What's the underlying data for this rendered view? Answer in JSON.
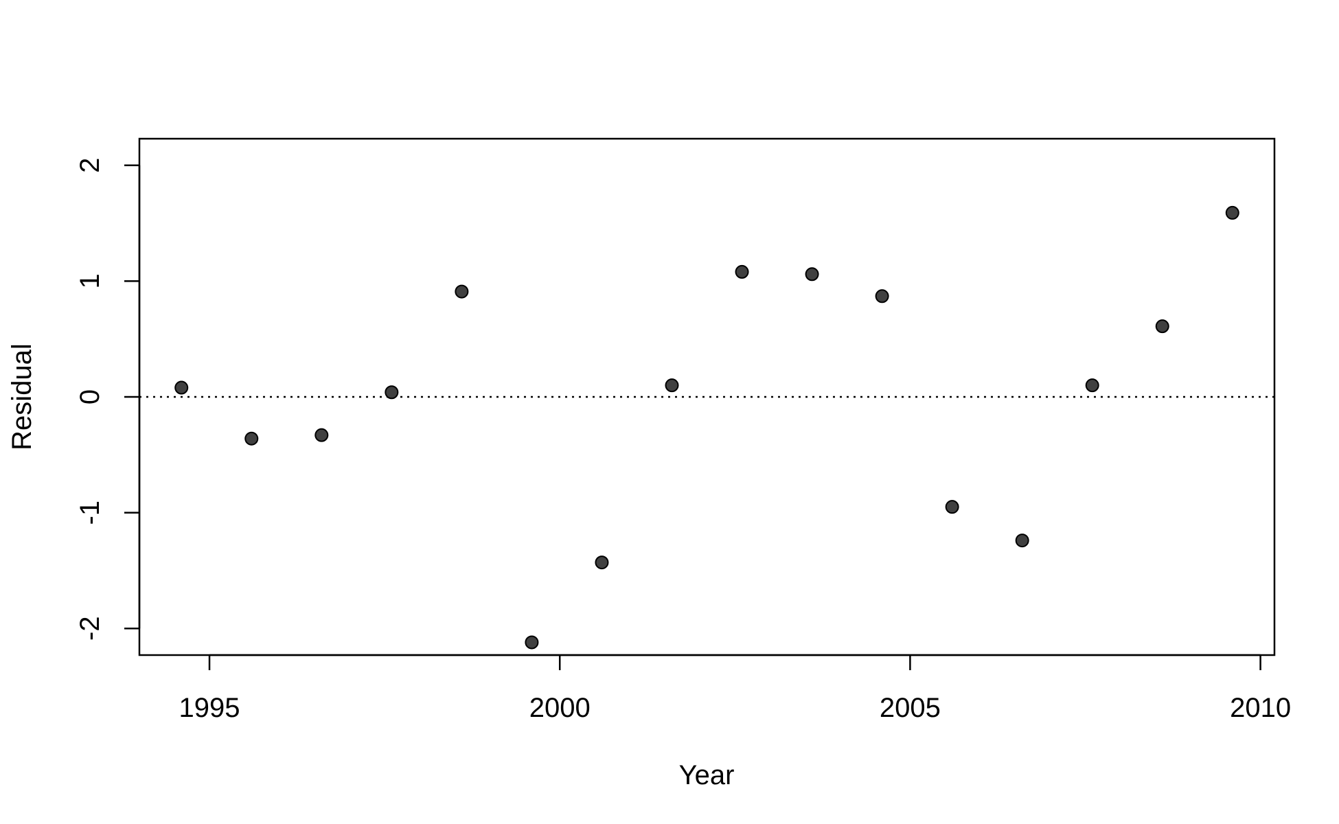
{
  "chart_data": {
    "type": "scatter",
    "title": "",
    "xlabel": "Year",
    "ylabel": "Residual",
    "xlim": [
      1994,
      2010.2
    ],
    "ylim": [
      -2.23,
      2.23
    ],
    "x_ticks": [
      1995,
      2000,
      2005,
      2010
    ],
    "x_tick_labels": [
      "1995",
      "2000",
      "2005",
      "2010"
    ],
    "y_ticks": [
      -2,
      -1,
      0,
      1,
      2
    ],
    "y_tick_labels": [
      "-2",
      "-1",
      "0",
      "1",
      "2"
    ],
    "reference_line": {
      "y": 0,
      "style": "dotted"
    },
    "grid": false,
    "marker_color": "#404040",
    "series": [
      {
        "x": [
          1994.6,
          1995.6,
          1996.6,
          1997.6,
          1998.6,
          1999.6,
          2000.6,
          2001.6,
          2002.6,
          2003.6,
          2004.6,
          2005.6,
          2006.6,
          2007.6,
          2008.6,
          2009.6
        ],
        "y": [
          0.08,
          -0.36,
          -0.33,
          0.04,
          0.91,
          -2.12,
          -1.43,
          0.1,
          1.08,
          1.06,
          0.87,
          -0.95,
          -1.24,
          0.1,
          0.61,
          1.59
        ]
      }
    ]
  }
}
